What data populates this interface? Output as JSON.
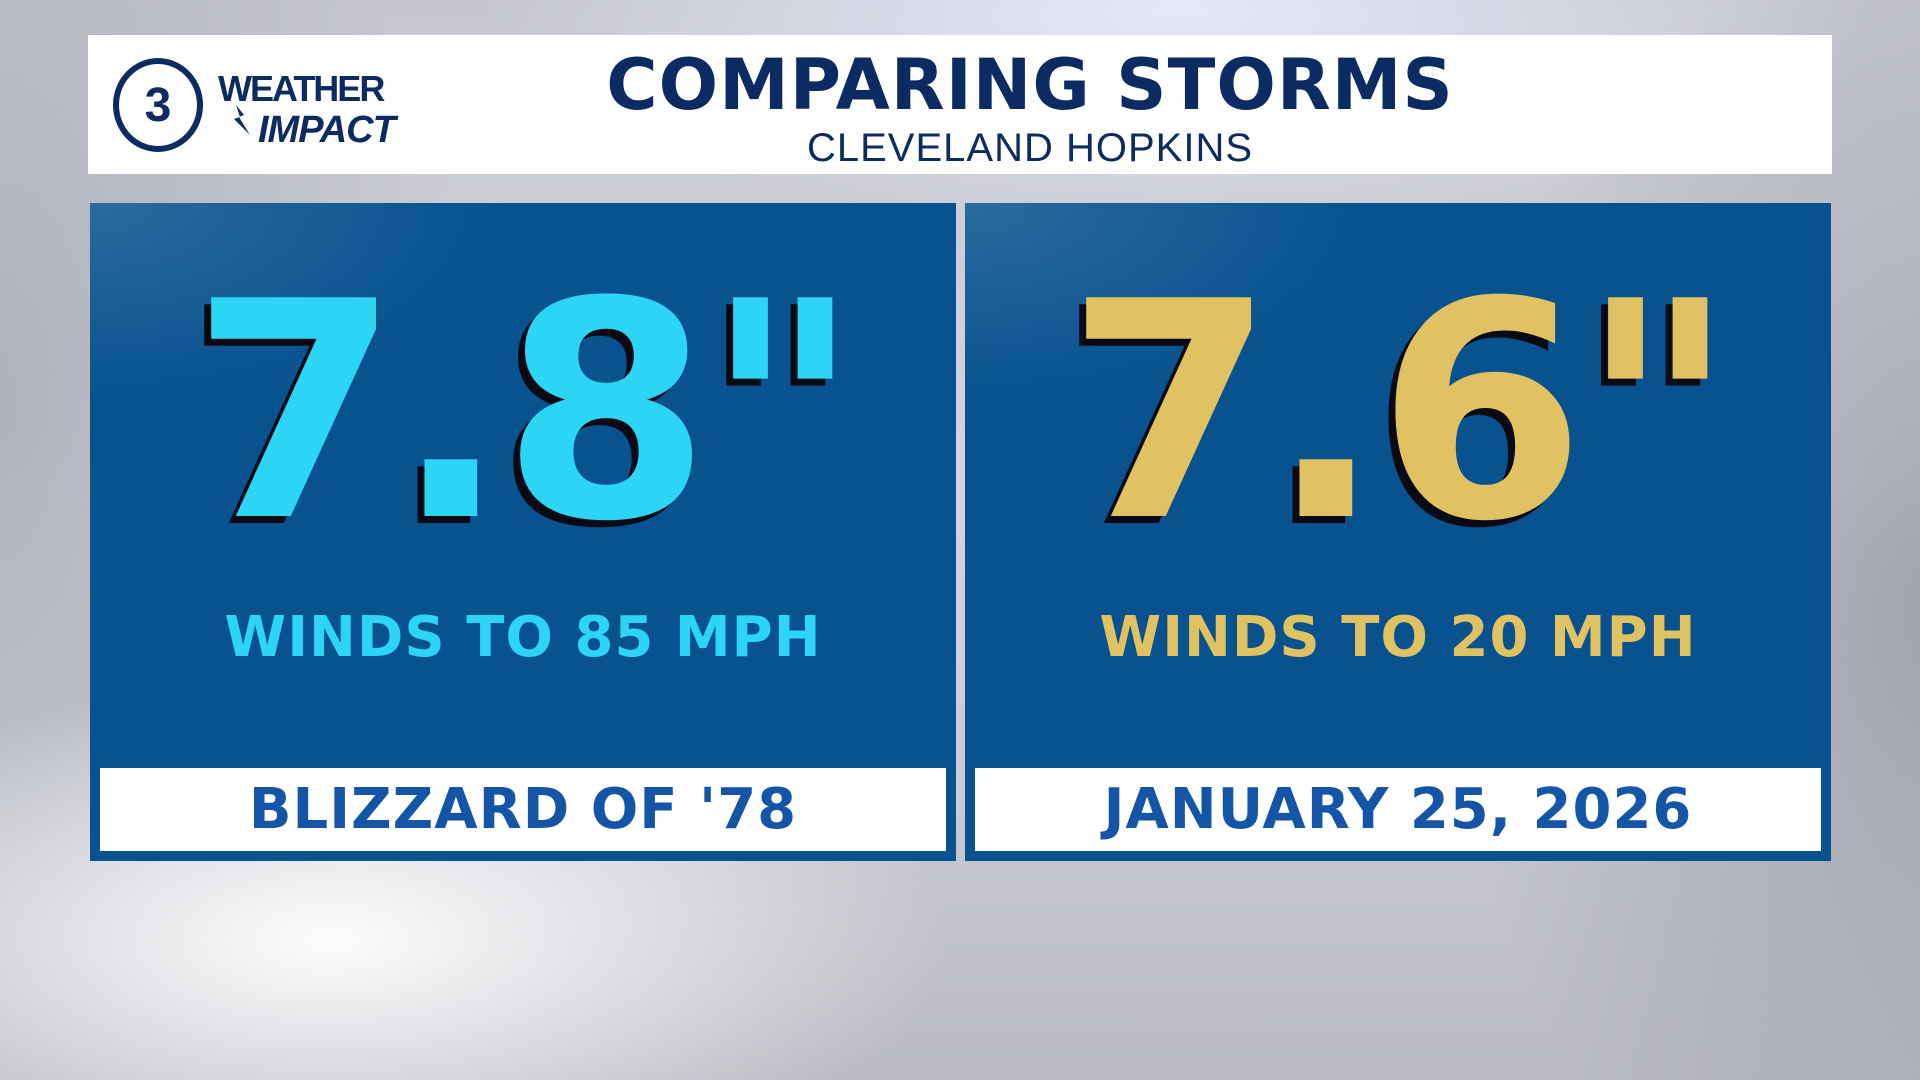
{
  "header": {
    "logo": {
      "number": "3",
      "line1": "WEATHER",
      "line2": "IMPACT"
    },
    "title": "COMPARING STORMS",
    "subtitle": "CLEVELAND HOPKINS"
  },
  "panels": [
    {
      "snowfall": "7.8\"",
      "winds": "WINDS TO 85 MPH",
      "label": "BLIZZARD OF '78",
      "color": "#2dd5f5"
    },
    {
      "snowfall": "7.6\"",
      "winds": "WINDS TO 20 MPH",
      "label": "JANUARY 25, 2026",
      "color": "#e0c263"
    }
  ],
  "colors": {
    "panel_background": "#08528f",
    "header_text": "#0d2b63",
    "label_text": "#1555a8"
  }
}
